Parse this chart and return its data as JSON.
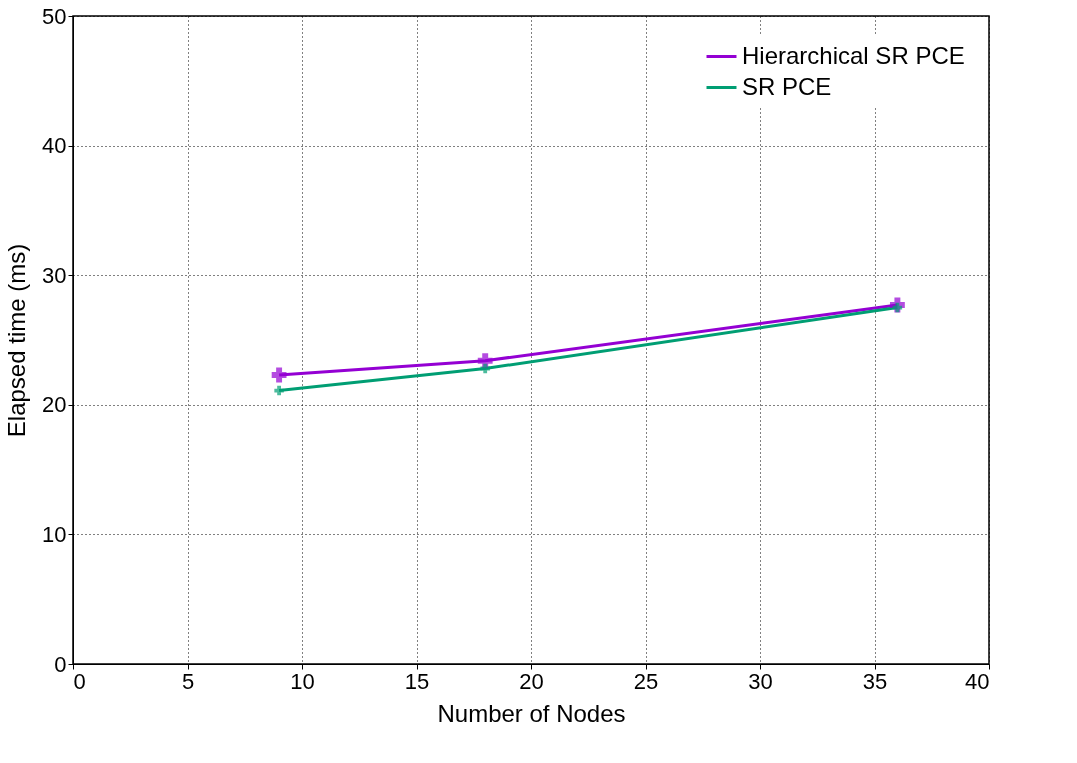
{
  "chart_data": {
    "type": "line",
    "xlabel": "Number of Nodes",
    "ylabel": "Elapsed time (ms)",
    "x": [
      9,
      18,
      36
    ],
    "series": [
      {
        "name": "Hierarchical SR PCE",
        "color": "#9400d3",
        "values": [
          22.3,
          23.4,
          27.7
        ]
      },
      {
        "name": "SR PCE",
        "color": "#009e73",
        "values": [
          21.1,
          22.8,
          27.5
        ]
      }
    ],
    "xlim": [
      0,
      40
    ],
    "xticks": [
      0,
      5,
      10,
      15,
      20,
      25,
      30,
      35,
      40
    ],
    "ylim": [
      0,
      50
    ],
    "yticks": [
      0,
      10,
      20,
      30,
      40,
      50
    ],
    "grid": true,
    "legend": "top right",
    "marker": "cross",
    "line_style": "solid"
  }
}
